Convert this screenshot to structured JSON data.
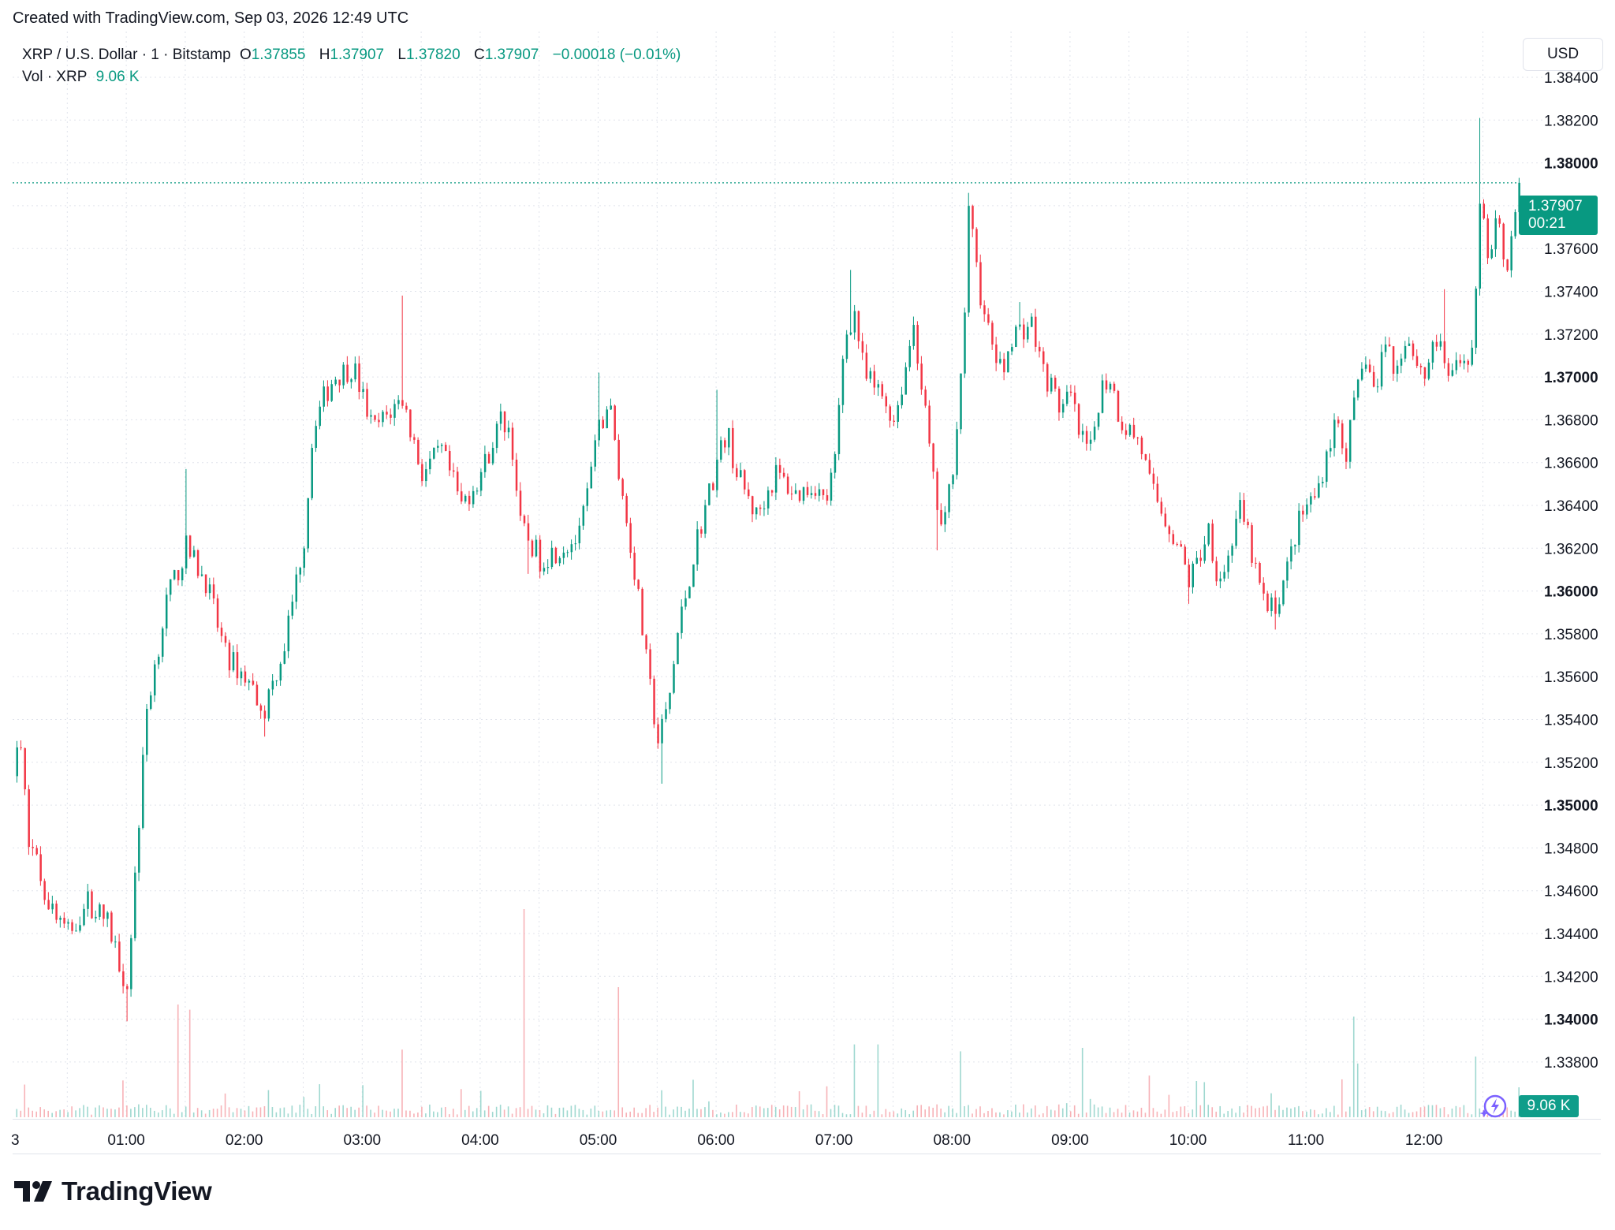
{
  "header": {
    "created_line": "Created with TradingView.com, Sep 03, 2026 12:49 UTC"
  },
  "legend": {
    "symbol": "XRP / U.S. Dollar · 1 · Bitstamp",
    "o_label": "O",
    "o_value": "1.37855",
    "h_label": "H",
    "h_value": "1.37907",
    "l_label": "L",
    "l_value": "1.37820",
    "c_label": "C",
    "c_value": "1.37907",
    "change": "−0.00018 (−0.01%)",
    "vol_label": "Vol · XRP",
    "vol_value": "9.06 K"
  },
  "currency": "USD",
  "last_price": {
    "price": "1.37907",
    "countdown": "00:21"
  },
  "vol_badge": "9.06 K",
  "brand": {
    "name": "TradingView",
    "icon": "tradingview-logo-icon"
  },
  "colors": {
    "up": "#089981",
    "down": "#f23645",
    "vol_up": "#9fd8d0",
    "vol_down": "#f7b2b7",
    "grid": "#e0e3eb",
    "text": "#131722"
  },
  "chart_data": {
    "type": "candlestick",
    "x_ticks": [
      "3",
      "01:00",
      "02:00",
      "03:00",
      "04:00",
      "05:00",
      "06:00",
      "07:00",
      "08:00",
      "09:00",
      "10:00",
      "11:00",
      "12:00"
    ],
    "y_ticks": [
      "1.38400",
      "1.38200",
      "1.38000",
      "1.37800",
      "1.37600",
      "1.37400",
      "1.37200",
      "1.37000",
      "1.36800",
      "1.36600",
      "1.36400",
      "1.36200",
      "1.36000",
      "1.35800",
      "1.35600",
      "1.35400",
      "1.35200",
      "1.35000",
      "1.34800",
      "1.34600",
      "1.34400",
      "1.34200",
      "1.34000",
      "1.33800"
    ],
    "y_ticks_bold": [
      "1.38000",
      "1.37000",
      "1.36000",
      "1.35000",
      "1.34000"
    ],
    "ylim": [
      1.3369,
      1.3858
    ],
    "last_price": 1.37907,
    "time_range": [
      "00:00",
      "12:49"
    ],
    "price_path": [
      {
        "t": "00:00",
        "p": 1.3505
      },
      {
        "t": "00:05",
        "p": 1.3535
      },
      {
        "t": "00:10",
        "p": 1.3485
      },
      {
        "t": "00:20",
        "p": 1.3455
      },
      {
        "t": "00:30",
        "p": 1.344
      },
      {
        "t": "00:40",
        "p": 1.3455
      },
      {
        "t": "00:50",
        "p": 1.3445
      },
      {
        "t": "01:00",
        "p": 1.3415
      },
      {
        "t": "01:05",
        "p": 1.348
      },
      {
        "t": "01:10",
        "p": 1.3545
      },
      {
        "t": "01:20",
        "p": 1.3595
      },
      {
        "t": "01:30",
        "p": 1.362
      },
      {
        "t": "01:40",
        "p": 1.3605
      },
      {
        "t": "01:50",
        "p": 1.357
      },
      {
        "t": "02:00",
        "p": 1.356
      },
      {
        "t": "02:10",
        "p": 1.3545
      },
      {
        "t": "02:20",
        "p": 1.3575
      },
      {
        "t": "02:30",
        "p": 1.3625
      },
      {
        "t": "02:35",
        "p": 1.368
      },
      {
        "t": "02:45",
        "p": 1.37
      },
      {
        "t": "02:55",
        "p": 1.3705
      },
      {
        "t": "03:05",
        "p": 1.3675
      },
      {
        "t": "03:15",
        "p": 1.3685
      },
      {
        "t": "03:20",
        "p": 1.369
      },
      {
        "t": "03:30",
        "p": 1.3655
      },
      {
        "t": "03:40",
        "p": 1.3665
      },
      {
        "t": "03:50",
        "p": 1.364
      },
      {
        "t": "04:00",
        "p": 1.3655
      },
      {
        "t": "04:10",
        "p": 1.368
      },
      {
        "t": "04:15",
        "p": 1.3675
      },
      {
        "t": "04:20",
        "p": 1.363
      },
      {
        "t": "04:30",
        "p": 1.3615
      },
      {
        "t": "04:40",
        "p": 1.362
      },
      {
        "t": "04:50",
        "p": 1.3625
      },
      {
        "t": "05:00",
        "p": 1.3675
      },
      {
        "t": "05:05",
        "p": 1.369
      },
      {
        "t": "05:10",
        "p": 1.3655
      },
      {
        "t": "05:18",
        "p": 1.361
      },
      {
        "t": "05:25",
        "p": 1.356
      },
      {
        "t": "05:30",
        "p": 1.353
      },
      {
        "t": "05:35",
        "p": 1.3545
      },
      {
        "t": "05:40",
        "p": 1.358
      },
      {
        "t": "05:50",
        "p": 1.3625
      },
      {
        "t": "06:00",
        "p": 1.366
      },
      {
        "t": "06:05",
        "p": 1.3675
      },
      {
        "t": "06:10",
        "p": 1.3655
      },
      {
        "t": "06:20",
        "p": 1.3635
      },
      {
        "t": "06:30",
        "p": 1.3655
      },
      {
        "t": "06:40",
        "p": 1.3645
      },
      {
        "t": "06:50",
        "p": 1.365
      },
      {
        "t": "06:55",
        "p": 1.364
      },
      {
        "t": "07:00",
        "p": 1.366
      },
      {
        "t": "07:05",
        "p": 1.372
      },
      {
        "t": "07:10",
        "p": 1.373
      },
      {
        "t": "07:15",
        "p": 1.37
      },
      {
        "t": "07:25",
        "p": 1.369
      },
      {
        "t": "07:30",
        "p": 1.368
      },
      {
        "t": "07:35",
        "p": 1.37
      },
      {
        "t": "07:40",
        "p": 1.3725
      },
      {
        "t": "07:45",
        "p": 1.369
      },
      {
        "t": "07:50",
        "p": 1.365
      },
      {
        "t": "07:55",
        "p": 1.3625
      },
      {
        "t": "08:00",
        "p": 1.366
      },
      {
        "t": "08:05",
        "p": 1.371
      },
      {
        "t": "08:08",
        "p": 1.3775
      },
      {
        "t": "08:12",
        "p": 1.3755
      },
      {
        "t": "08:15",
        "p": 1.373
      },
      {
        "t": "08:25",
        "p": 1.37
      },
      {
        "t": "08:30",
        "p": 1.372
      },
      {
        "t": "08:40",
        "p": 1.3725
      },
      {
        "t": "08:45",
        "p": 1.3705
      },
      {
        "t": "08:55",
        "p": 1.3685
      },
      {
        "t": "09:00",
        "p": 1.369
      },
      {
        "t": "09:05",
        "p": 1.367
      },
      {
        "t": "09:10",
        "p": 1.3665
      },
      {
        "t": "09:15",
        "p": 1.3695
      },
      {
        "t": "09:20",
        "p": 1.37
      },
      {
        "t": "09:25",
        "p": 1.368
      },
      {
        "t": "09:35",
        "p": 1.367
      },
      {
        "t": "09:40",
        "p": 1.365
      },
      {
        "t": "09:45",
        "p": 1.364
      },
      {
        "t": "09:50",
        "p": 1.363
      },
      {
        "t": "09:55",
        "p": 1.362
      },
      {
        "t": "10:00",
        "p": 1.3605
      },
      {
        "t": "10:05",
        "p": 1.3615
      },
      {
        "t": "10:10",
        "p": 1.363
      },
      {
        "t": "10:15",
        "p": 1.3605
      },
      {
        "t": "10:20",
        "p": 1.3615
      },
      {
        "t": "10:25",
        "p": 1.364
      },
      {
        "t": "10:30",
        "p": 1.3625
      },
      {
        "t": "10:35",
        "p": 1.3605
      },
      {
        "t": "10:40",
        "p": 1.359
      },
      {
        "t": "10:45",
        "p": 1.3595
      },
      {
        "t": "10:50",
        "p": 1.361
      },
      {
        "t": "10:55",
        "p": 1.363
      },
      {
        "t": "11:00",
        "p": 1.364
      },
      {
        "t": "11:05",
        "p": 1.3645
      },
      {
        "t": "11:10",
        "p": 1.3665
      },
      {
        "t": "11:15",
        "p": 1.368
      },
      {
        "t": "11:20",
        "p": 1.3665
      },
      {
        "t": "11:25",
        "p": 1.369
      },
      {
        "t": "11:30",
        "p": 1.371
      },
      {
        "t": "11:35",
        "p": 1.369
      },
      {
        "t": "11:40",
        "p": 1.372
      },
      {
        "t": "11:45",
        "p": 1.37
      },
      {
        "t": "11:50",
        "p": 1.372
      },
      {
        "t": "11:55",
        "p": 1.371
      },
      {
        "t": "12:00",
        "p": 1.37
      },
      {
        "t": "12:05",
        "p": 1.372
      },
      {
        "t": "12:10",
        "p": 1.3705
      },
      {
        "t": "12:15",
        "p": 1.37
      },
      {
        "t": "12:20",
        "p": 1.371
      },
      {
        "t": "12:25",
        "p": 1.3712
      },
      {
        "t": "12:28",
        "p": 1.3785
      },
      {
        "t": "12:30",
        "p": 1.377
      },
      {
        "t": "12:33",
        "p": 1.3755
      },
      {
        "t": "12:37",
        "p": 1.378
      },
      {
        "t": "12:40",
        "p": 1.376
      },
      {
        "t": "12:42",
        "p": 1.375
      },
      {
        "t": "12:45",
        "p": 1.3775
      },
      {
        "t": "12:49",
        "p": 1.37907
      }
    ],
    "extremes": [
      {
        "t": "00:00",
        "p": 1.354
      },
      {
        "t": "01:00",
        "p": 1.3399
      },
      {
        "t": "01:30",
        "p": 1.3657
      },
      {
        "t": "02:10",
        "p": 1.3532
      },
      {
        "t": "03:20",
        "p": 1.3738
      },
      {
        "t": "04:25",
        "p": 1.3608
      },
      {
        "t": "05:00",
        "p": 1.3702
      },
      {
        "t": "05:32",
        "p": 1.351
      },
      {
        "t": "06:00",
        "p": 1.3694
      },
      {
        "t": "07:08",
        "p": 1.375
      },
      {
        "t": "07:52",
        "p": 1.3619
      },
      {
        "t": "08:08",
        "p": 1.3786
      },
      {
        "t": "08:35",
        "p": 1.3735
      },
      {
        "t": "10:00",
        "p": 1.3594
      },
      {
        "t": "10:45",
        "p": 1.3582
      },
      {
        "t": "12:10",
        "p": 1.3741
      },
      {
        "t": "12:28",
        "p": 1.3821
      }
    ],
    "volume_spikes": [
      {
        "t": "04:23",
        "v": 12.0
      },
      {
        "t": "05:11",
        "v": 7.5
      },
      {
        "t": "01:27",
        "v": 6.5
      },
      {
        "t": "01:33",
        "v": 6.2
      },
      {
        "t": "11:25",
        "v": 5.8
      },
      {
        "t": "07:10",
        "v": 4.2
      },
      {
        "t": "07:23",
        "v": 4.2
      },
      {
        "t": "09:06",
        "v": 4.0
      },
      {
        "t": "08:05",
        "v": 3.8
      },
      {
        "t": "12:27",
        "v": 3.5
      },
      {
        "t": "03:20",
        "v": 3.9
      },
      {
        "t": "11:27",
        "v": 3.1
      }
    ],
    "current_volume": "9.06 K"
  }
}
